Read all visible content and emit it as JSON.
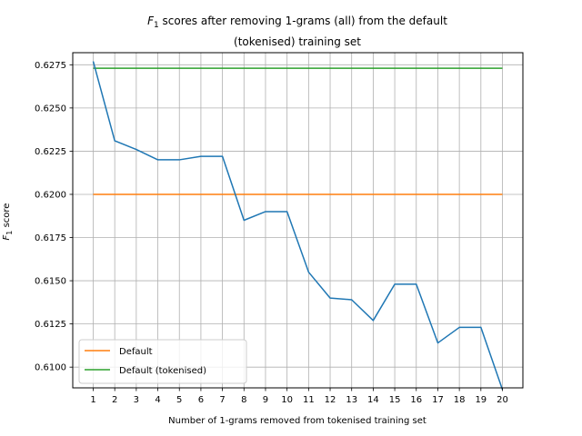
{
  "chart_data": {
    "type": "line",
    "title_math": "F",
    "title_sub": "1",
    "title_line1_rest": " scores after removing 1-grams (all) from the default",
    "title_line2": "(tokenised) training set",
    "xlabel": "Number of 1-grams removed from tokenised training set",
    "ylabel_math": "F",
    "ylabel_sub": "1",
    "ylabel_rest": " score",
    "x": [
      1,
      2,
      3,
      4,
      5,
      6,
      7,
      8,
      9,
      10,
      11,
      12,
      13,
      14,
      15,
      16,
      17,
      18,
      19,
      20
    ],
    "xlim": [
      0.05,
      20.95
    ],
    "ylim": [
      0.6088,
      0.6282
    ],
    "yticks": [
      0.61,
      0.6125,
      0.615,
      0.6175,
      0.62,
      0.6225,
      0.625,
      0.6275
    ],
    "ytick_labels": [
      "0.6100",
      "0.6125",
      "0.6150",
      "0.6175",
      "0.6200",
      "0.6225",
      "0.6250",
      "0.6275"
    ],
    "grid": true,
    "legend_position": "lower-left",
    "series": [
      {
        "color": "#1f77b4",
        "values": [
          0.6277,
          0.6231,
          0.6226,
          0.622,
          0.622,
          0.6222,
          0.6222,
          0.6185,
          0.619,
          0.619,
          0.6155,
          0.614,
          0.6139,
          0.6127,
          0.6148,
          0.6148,
          0.6114,
          0.6123,
          0.6123,
          0.6087
        ]
      },
      {
        "name": "Default",
        "color": "#ff7f0e",
        "values": [
          0.62,
          0.62,
          0.62,
          0.62,
          0.62,
          0.62,
          0.62,
          0.62,
          0.62,
          0.62,
          0.62,
          0.62,
          0.62,
          0.62,
          0.62,
          0.62,
          0.62,
          0.62,
          0.62,
          0.62
        ]
      },
      {
        "name": "Default (tokenised)",
        "color": "#2ca02c",
        "values": [
          0.6273,
          0.6273,
          0.6273,
          0.6273,
          0.6273,
          0.6273,
          0.6273,
          0.6273,
          0.6273,
          0.6273,
          0.6273,
          0.6273,
          0.6273,
          0.6273,
          0.6273,
          0.6273,
          0.6273,
          0.6273,
          0.6273,
          0.6273
        ]
      }
    ]
  }
}
